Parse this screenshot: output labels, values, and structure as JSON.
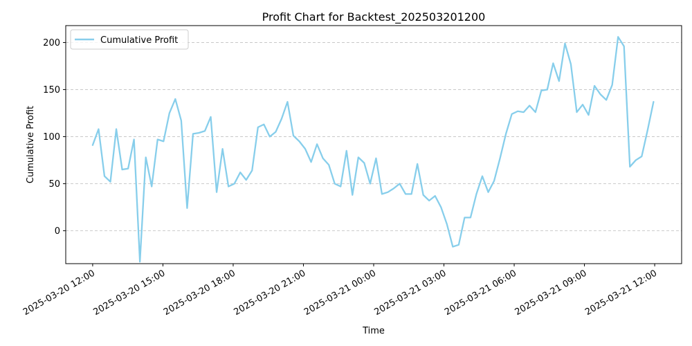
{
  "chart_data": {
    "type": "line",
    "title": "Profit Chart for Backtest_202503201200",
    "xlabel": "Time",
    "ylabel": "Cumulative Profit",
    "grid": "y-dashed",
    "legend_position": "upper-left",
    "xlim_hours": [
      -1.15,
      25.15
    ],
    "ylim": [
      -35,
      218
    ],
    "x_ticks": [
      {
        "hours": 0,
        "label": "2025-03-20 12:00"
      },
      {
        "hours": 3,
        "label": "2025-03-20 15:00"
      },
      {
        "hours": 6,
        "label": "2025-03-20 18:00"
      },
      {
        "hours": 9,
        "label": "2025-03-20 21:00"
      },
      {
        "hours": 12,
        "label": "2025-03-21 00:00"
      },
      {
        "hours": 15,
        "label": "2025-03-21 03:00"
      },
      {
        "hours": 18,
        "label": "2025-03-21 06:00"
      },
      {
        "hours": 21,
        "label": "2025-03-21 09:00"
      },
      {
        "hours": 24,
        "label": "2025-03-21 12:00"
      }
    ],
    "y_ticks": [
      0,
      50,
      100,
      150,
      200
    ],
    "series": [
      {
        "name": "Cumulative Profit",
        "color": "#87CEEB",
        "values": [
          91,
          108,
          58,
          52,
          108,
          65,
          66,
          97,
          -33,
          78,
          47,
          97,
          95,
          125,
          140,
          117,
          24,
          103,
          104,
          106,
          121,
          41,
          87,
          47,
          50,
          62,
          54,
          64,
          110,
          113,
          100,
          105,
          119,
          137,
          101,
          95,
          87,
          73,
          92,
          77,
          70,
          50,
          47,
          85,
          38,
          78,
          72,
          50,
          77,
          39,
          41,
          45,
          50,
          39,
          39,
          71,
          38,
          32,
          37,
          25,
          7,
          -17,
          -15,
          14,
          14,
          39,
          58,
          41,
          53,
          77,
          103,
          124,
          127,
          126,
          133,
          126,
          149,
          150,
          178,
          159,
          199,
          177,
          126,
          134,
          123,
          154,
          145,
          139,
          155,
          206,
          196,
          68,
          75,
          79,
          107,
          137
        ]
      }
    ]
  }
}
